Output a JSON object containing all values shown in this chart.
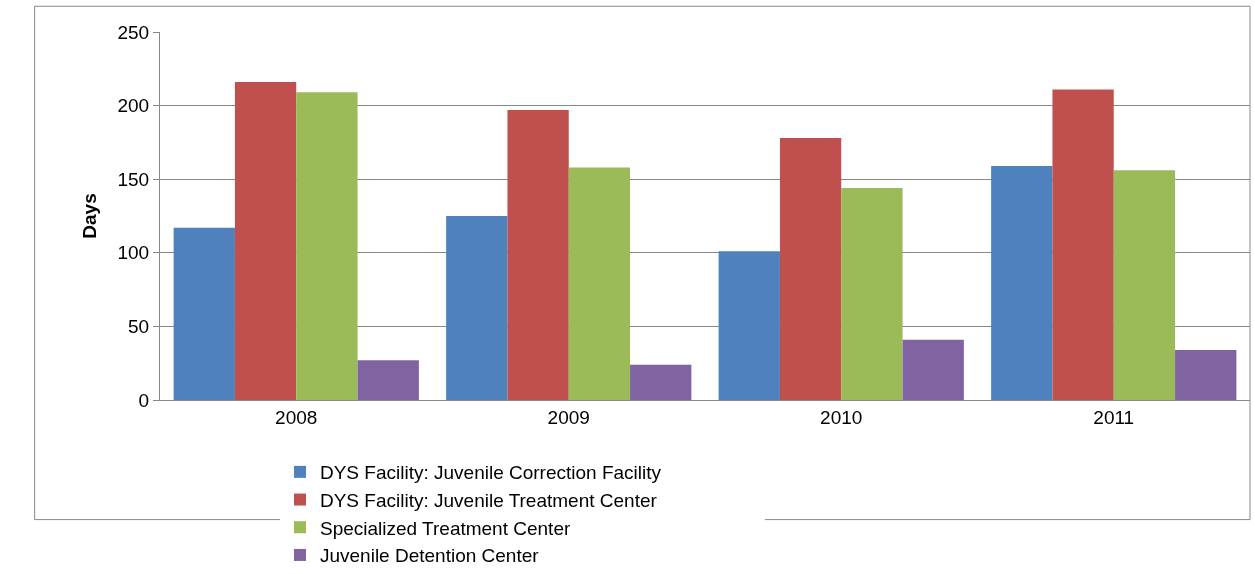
{
  "chart_data": {
    "type": "bar",
    "ylabel": "Days",
    "categories": [
      "2008",
      "2009",
      "2010",
      "2011"
    ],
    "series": [
      {
        "name": "DYS Facility: Juvenile Correction Facility",
        "color": "#4f81bd",
        "values": [
          117,
          125,
          101,
          159
        ]
      },
      {
        "name": "DYS Facility: Juvenile Treatment Center",
        "color": "#c0504d",
        "values": [
          216,
          197,
          178,
          211
        ]
      },
      {
        "name": "Specialized Treatment Center",
        "color": "#9bbb59",
        "values": [
          209,
          158,
          144,
          156
        ]
      },
      {
        "name": "Juvenile Detention Center",
        "color": "#8064a2",
        "values": [
          27,
          24,
          41,
          34
        ]
      }
    ],
    "ylim": [
      0,
      250
    ],
    "yticks": [
      0,
      50,
      100,
      150,
      200,
      250
    ],
    "grid": "y",
    "legend": "bottom"
  }
}
